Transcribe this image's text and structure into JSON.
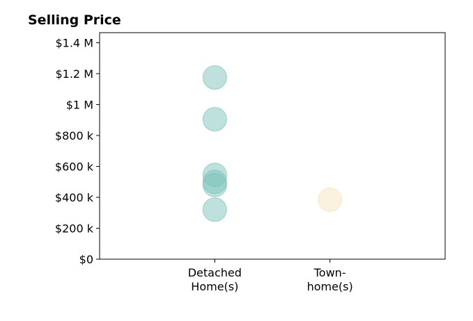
{
  "chart_data": {
    "type": "scatter",
    "title": "Selling Price",
    "xlabel": "",
    "ylabel": "",
    "categories": [
      {
        "lines": [
          "Detached",
          "Home(s)"
        ]
      },
      {
        "lines": [
          "Town-",
          "home(s)"
        ]
      }
    ],
    "xlim": [
      -1,
      2
    ],
    "ylim": [
      0,
      1465000
    ],
    "y_ticks": [
      {
        "value": 0,
        "label": "$0"
      },
      {
        "value": 200000,
        "label": "$200 k"
      },
      {
        "value": 400000,
        "label": "$400 k"
      },
      {
        "value": 600000,
        "label": "$600 k"
      },
      {
        "value": 800000,
        "label": "$800 k"
      },
      {
        "value": 1000000,
        "label": "$1 M"
      },
      {
        "value": 1200000,
        "label": "$1.2 M"
      },
      {
        "value": 1400000,
        "label": "$1.4 M"
      }
    ],
    "series": [
      {
        "category_index": 0,
        "color": "#7dc4bb",
        "values": [
          1175000,
          905000,
          545000,
          500000,
          480000,
          320000
        ]
      },
      {
        "category_index": 1,
        "color": "#f6e3bd",
        "values": [
          385000
        ]
      }
    ],
    "grid": false,
    "legend": "none"
  }
}
